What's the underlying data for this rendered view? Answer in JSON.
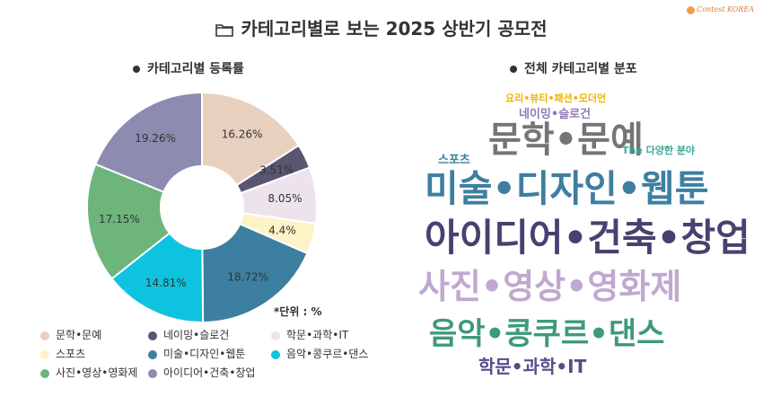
{
  "page": {
    "title": "카테고리별로 보는 2025 상반기 공모전",
    "logo_text": "Contest KOREA",
    "folder_icon": "folder-icon"
  },
  "left_section": {
    "title": "카테고리별 등록률",
    "unit_note": "*단위 : %"
  },
  "right_section": {
    "title": "전체 카테고리별 분포"
  },
  "chart_data": [
    {
      "type": "pie",
      "title": "카테고리별 등록률",
      "donut": true,
      "slices": [
        {
          "label": "문학•문예",
          "value": 16.26,
          "value_label": "16.26%",
          "color": "#e8d0bf"
        },
        {
          "label": "네이밍•슬로건",
          "value": 3.51,
          "value_label": "3.51%",
          "color": "#5a5570"
        },
        {
          "label": "학문•과학•IT",
          "value": 8.05,
          "value_label": "8.05%",
          "color": "#ede3ec"
        },
        {
          "label": "스포츠",
          "value": 4.4,
          "value_label": "4.4%",
          "color": "#fdf3c8"
        },
        {
          "label": "미술•디자인•웹툰",
          "value": 18.72,
          "value_label": "18.72%",
          "color": "#3d7fa0"
        },
        {
          "label": "음악•콩쿠르•댄스",
          "value": 14.81,
          "value_label": "14.81%",
          "color": "#0ec3df"
        },
        {
          "label": "사진•영상•영화제",
          "value": 17.15,
          "value_label": "17.15%",
          "color": "#6db57a"
        },
        {
          "label": "아이디어•건축•창업",
          "value": 19.26,
          "value_label": "19.26%",
          "color": "#8e8bb0"
        }
      ],
      "legend": [
        {
          "label": "문학•문예",
          "color": "#e8d0bf"
        },
        {
          "label": "네이밍•슬로건",
          "color": "#5a5570"
        },
        {
          "label": "학문•과학•IT",
          "color": "#ede3ec"
        },
        {
          "label": "스포츠",
          "color": "#fdf3c8"
        },
        {
          "label": "미술•디자인•웹툰",
          "color": "#3d7fa0"
        },
        {
          "label": "음악•콩쿠르•댄스",
          "color": "#0ec3df"
        },
        {
          "label": "사진•영상•영화제",
          "color": "#6db57a"
        },
        {
          "label": "아이디어•건축•창업",
          "color": "#8e8bb0"
        }
      ],
      "legend_placement": "bottom"
    },
    {
      "type": "wordcloud",
      "title": "전체 카테고리별 분포",
      "words": [
        {
          "text": "요리•뷰티•패션•모더언",
          "color": "#f0b400"
        },
        {
          "text": "네이밍•슬로건",
          "color": "#8e7bb8"
        },
        {
          "text": "문학•문예",
          "color": "#757575"
        },
        {
          "text": "The 다양한 분야",
          "color": "#3aa79a"
        },
        {
          "text": "스포츠",
          "color": "#3d7fa0"
        },
        {
          "text": "미술•디자인•웹툰",
          "color": "#3d7fa0"
        },
        {
          "text": "아이디어•건축•창업",
          "color": "#4a4070"
        },
        {
          "text": "사진•영상•영화제",
          "color": "#c0a8d0"
        },
        {
          "text": "음악•콩쿠르•댄스",
          "color": "#3d9a7a"
        },
        {
          "text": "학문•과학•IT",
          "color": "#5a4a8a"
        }
      ]
    }
  ]
}
